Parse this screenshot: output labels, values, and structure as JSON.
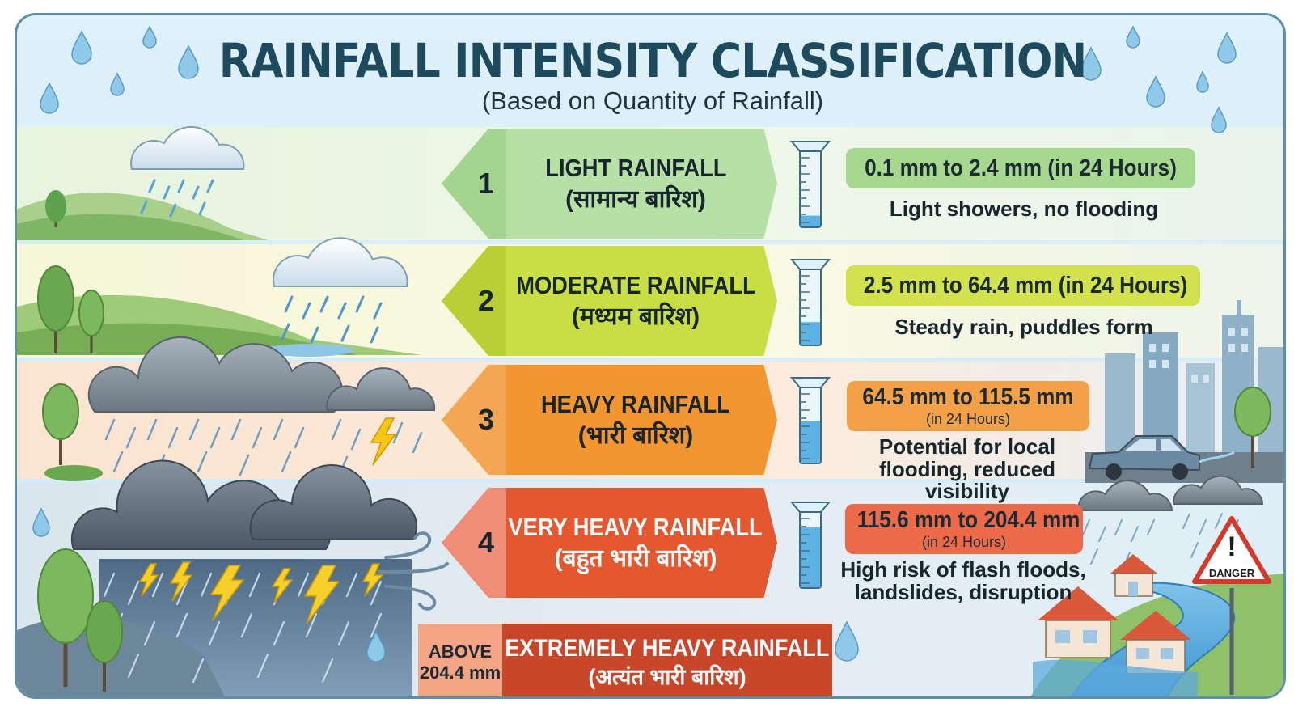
{
  "header": {
    "title": "RAINFALL INTENSITY CLASSIFICATION",
    "subtitle": "(Based on Quantity of Rainfall)"
  },
  "categories": [
    {
      "number": "1",
      "name_en": "LIGHT RAINFALL",
      "name_hi": "(सामान्य बारिश)",
      "range": "0.1 mm to 2.4 mm (in 24 Hours)",
      "period": "",
      "description": "Light showers, no flooding",
      "gauge_fill": 0.15
    },
    {
      "number": "2",
      "name_en": "MODERATE RAINFALL",
      "name_hi": "(मध्यम बारिश)",
      "range": "2.5 mm to 64.4 mm (in 24 Hours)",
      "period": "",
      "description": "Steady rain, puddles form",
      "gauge_fill": 0.3
    },
    {
      "number": "3",
      "name_en": "HEAVY RAINFALL",
      "name_hi": "(भारी बारिश)",
      "range": "64.5 mm to 115.5 mm",
      "period": "(in 24 Hours)",
      "description": "Potential for local flooding, reduced visibility",
      "gauge_fill": 0.55
    },
    {
      "number": "4",
      "name_en": "VERY HEAVY RAINFALL",
      "name_hi": "(बहुत भारी बारिश)",
      "range": "115.6 mm to 204.4 mm",
      "period": "(in 24 Hours)",
      "description": "High risk of flash floods, landslides, disruption",
      "gauge_fill": 0.78
    }
  ],
  "extreme": {
    "above_line1": "ABOVE",
    "above_line2": "204.4 mm",
    "name_en": "EXTREMELY HEAVY RAINFALL",
    "name_hi": "(अत्यंत भारी बारिश)"
  },
  "danger_sign": {
    "label": "DANGER"
  },
  "colors": {
    "title": "#1d4a5c",
    "light": "#b7e0a6",
    "moderate": "#c9dd45",
    "heavy": "#f3962f",
    "very_heavy": "#e5572e",
    "extreme": "#c8472a",
    "water": "#5fb3e2"
  },
  "icons": [
    "raindrop-icon",
    "cloud-icon",
    "rain-gauge-icon",
    "lightning-icon",
    "wind-icon",
    "danger-sign-icon",
    "car-icon",
    "house-icon",
    "tree-icon"
  ]
}
